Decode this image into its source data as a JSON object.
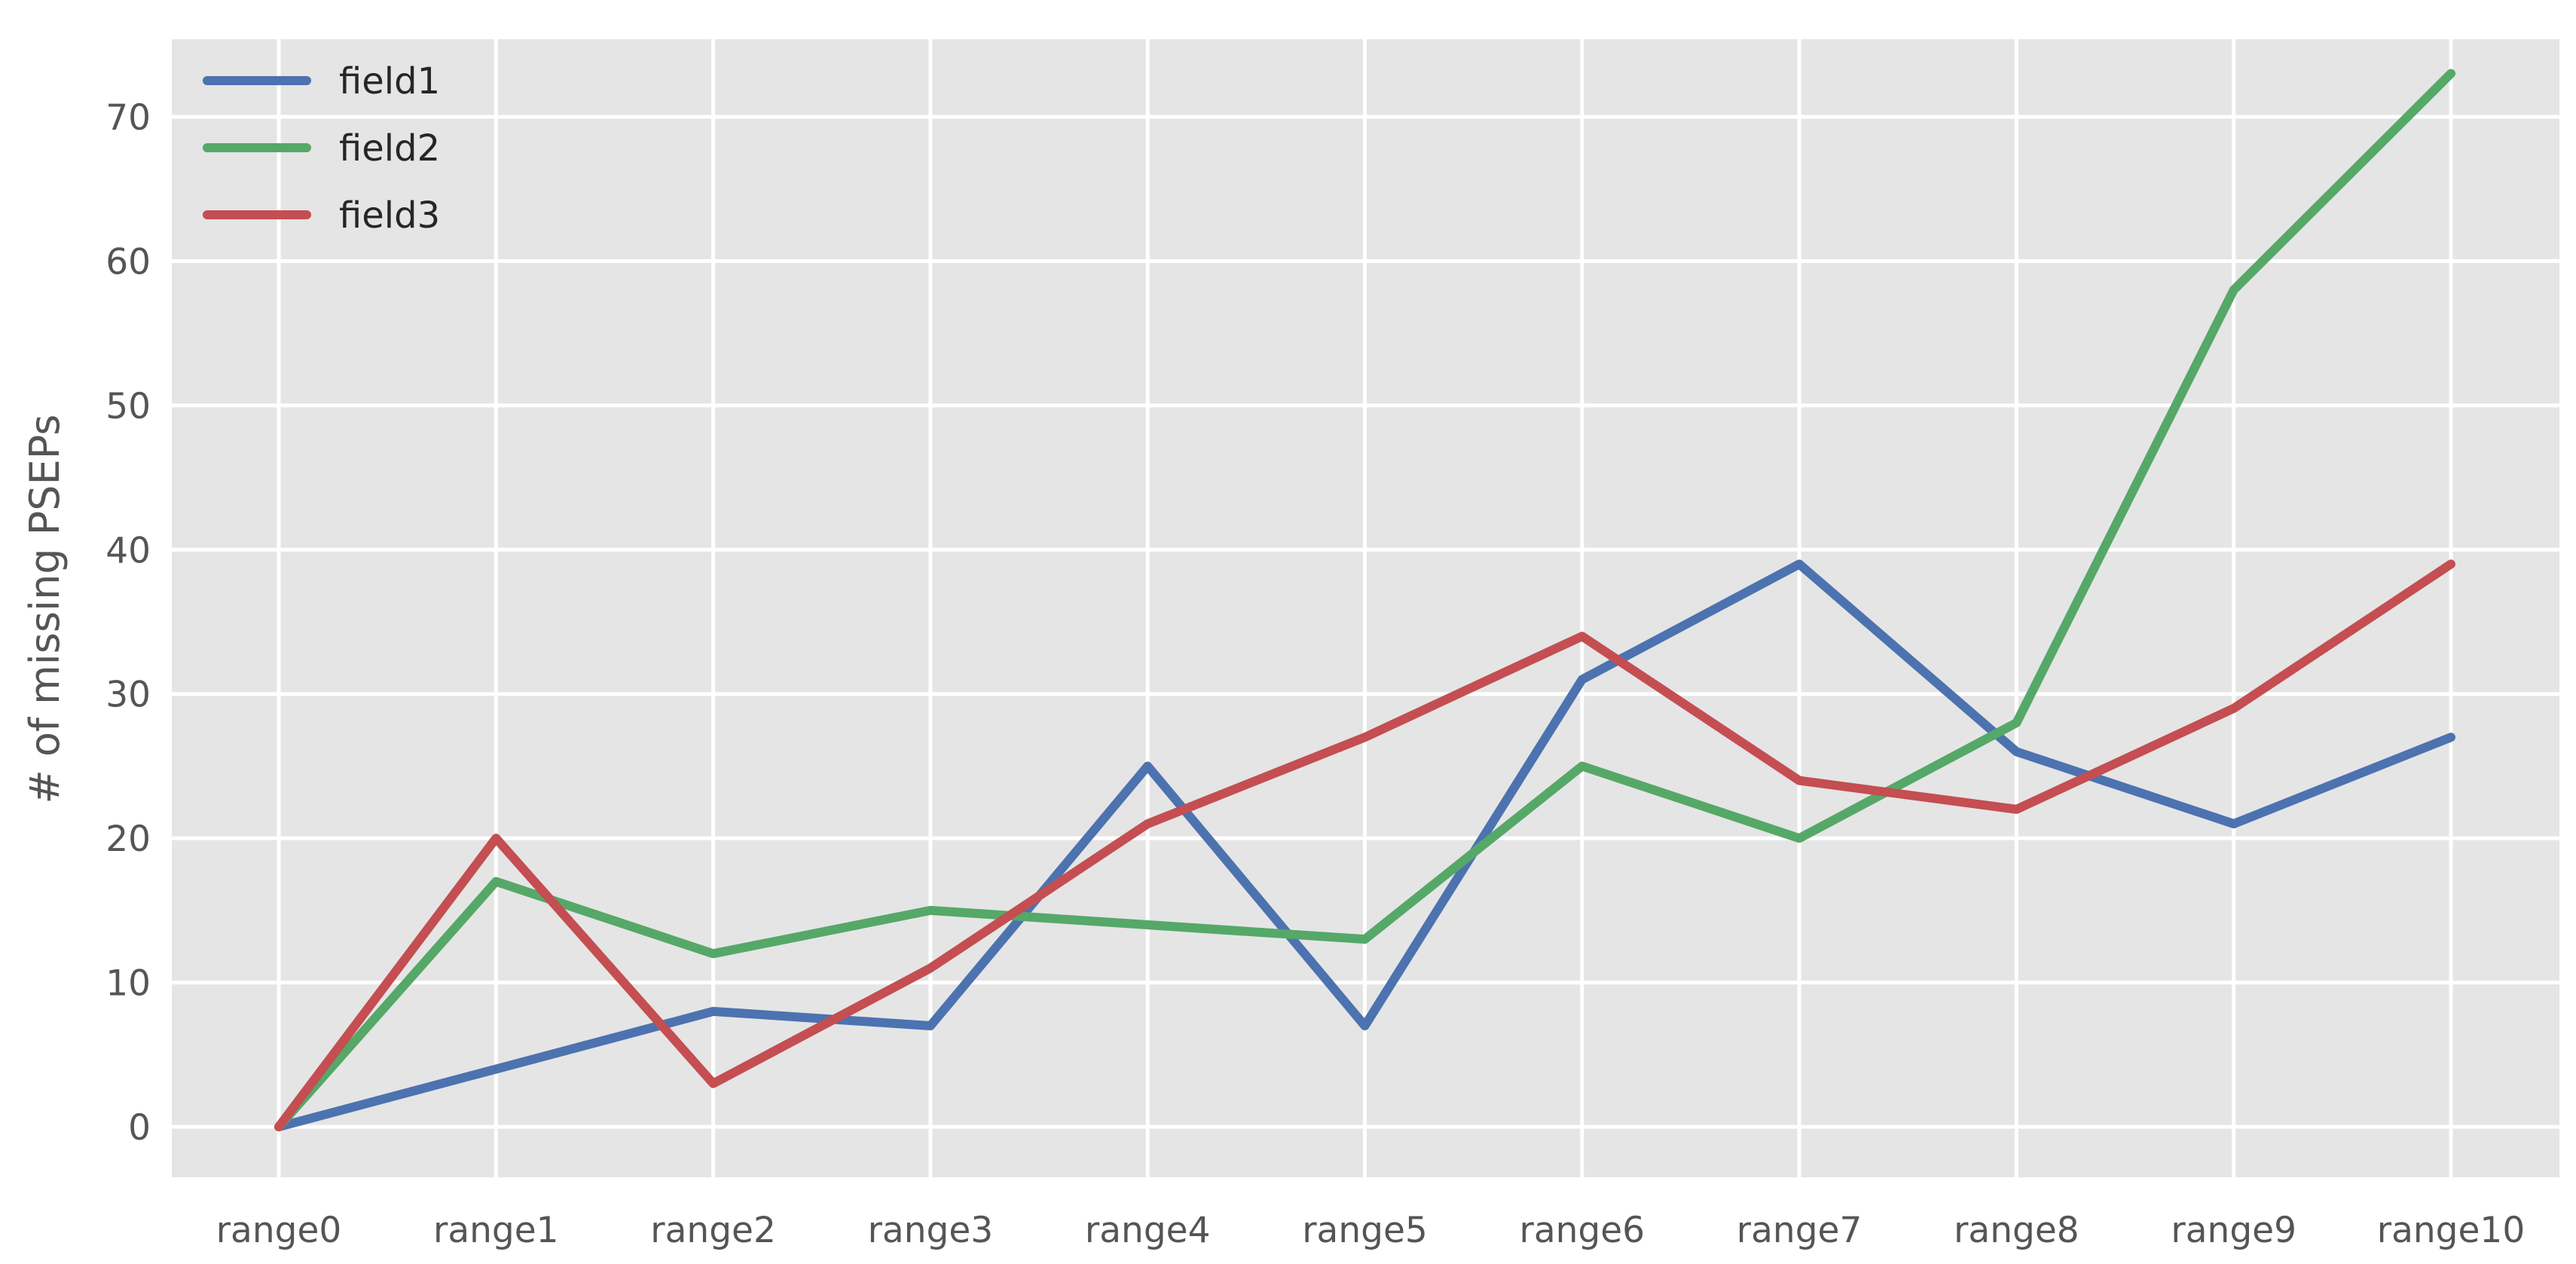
{
  "figure": {
    "background_color": "#ffffff",
    "plot_background_color": "#e5e5e5",
    "gridline_color": "#ffffff",
    "tick_label_color": "#555555",
    "legend_text_color": "#262626"
  },
  "chart_data": {
    "type": "line",
    "title": "",
    "xlabel": "",
    "ylabel": "# of missing PSEPs",
    "categories": [
      "range0",
      "range1",
      "range2",
      "range3",
      "range4",
      "range5",
      "range6",
      "range7",
      "range8",
      "range9",
      "range10"
    ],
    "yticks": [
      0,
      10,
      20,
      30,
      40,
      50,
      60,
      70
    ],
    "ylim": [
      -3.5,
      75.5
    ],
    "grid": true,
    "legend_position": "upper-left",
    "series": [
      {
        "name": "field1",
        "color": "#4c72b0",
        "values": [
          0,
          4,
          8,
          7,
          25,
          7,
          31,
          39,
          26,
          21,
          27
        ]
      },
      {
        "name": "field2",
        "color": "#55a868",
        "values": [
          0,
          17,
          12,
          15,
          14,
          13,
          25,
          20,
          28,
          58,
          73
        ]
      },
      {
        "name": "field3",
        "color": "#c44e52",
        "values": [
          0,
          20,
          3,
          11,
          21,
          27,
          34,
          24,
          22,
          29,
          39
        ]
      }
    ]
  }
}
